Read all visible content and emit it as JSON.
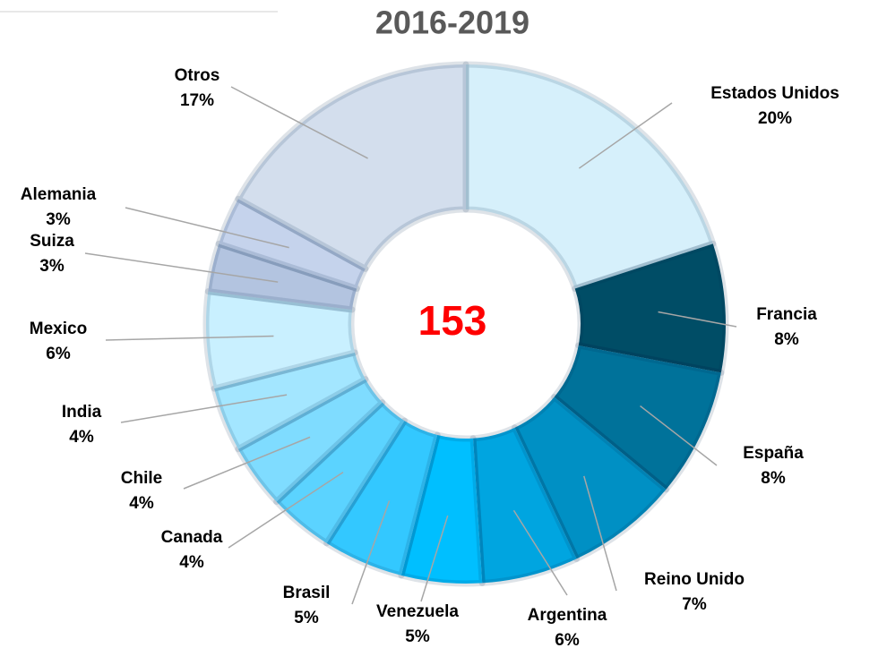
{
  "chart_data": {
    "type": "donut",
    "title": "2016-2019",
    "center_label": "153",
    "categories": [
      "Estados Unidos",
      "Francia",
      "España",
      "Reino Unido",
      "Argentina",
      "Venezuela",
      "Brasil",
      "Canada",
      "Chile",
      "India",
      "Mexico",
      "Suiza",
      "Alemania",
      "Otros"
    ],
    "values": [
      20,
      8,
      8,
      7,
      6,
      5,
      5,
      4,
      4,
      4,
      6,
      3,
      3,
      17
    ],
    "value_labels": [
      "20%",
      "8%",
      "8%",
      "7%",
      "6%",
      "5%",
      "5%",
      "4%",
      "4%",
      "4%",
      "6%",
      "3%",
      "3%",
      "17%"
    ],
    "colors": [
      "#d6f0fb",
      "#004d66",
      "#00729a",
      "#0090c4",
      "#00a5e0",
      "#00bfff",
      "#33c8ff",
      "#5bd3ff",
      "#7fdcff",
      "#a3e6ff",
      "#c9f0ff",
      "#b3c4e0",
      "#c5d3ec",
      "#d3deed"
    ]
  }
}
